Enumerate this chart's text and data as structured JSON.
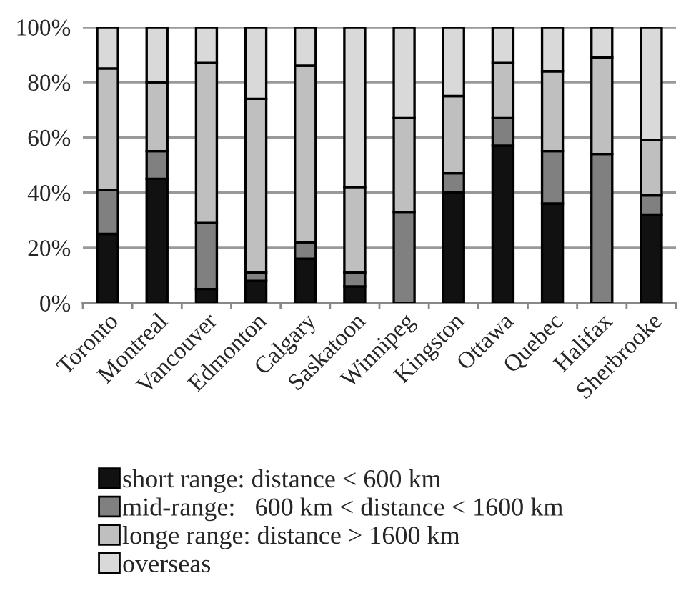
{
  "chart_data": {
    "type": "bar",
    "stacked": true,
    "categories": [
      "Toronto",
      "Montreal",
      "Vancouver",
      "Edmonton",
      "Calgary",
      "Saskatoon",
      "Winnipeg",
      "Kingston",
      "Ottawa",
      "Quebec",
      "Halifax",
      "Sherbrooke"
    ],
    "series": [
      {
        "name": "short range: distance < 600 km",
        "color": "#111111",
        "values": [
          25,
          45,
          5,
          8,
          16,
          6,
          0,
          40,
          57,
          36,
          0,
          32
        ]
      },
      {
        "name": "mid-range:   600 km < distance < 1600 km",
        "color": "#808080",
        "values": [
          16,
          10,
          24,
          3,
          6,
          5,
          33,
          7,
          10,
          19,
          54,
          7
        ]
      },
      {
        "name": "longe range: distance > 1600 km",
        "color": "#bfbfbf",
        "values": [
          44,
          25,
          58,
          63,
          64,
          31,
          34,
          28,
          20,
          29,
          35,
          20
        ]
      },
      {
        "name": "overseas",
        "color": "#d9d9d9",
        "values": [
          15,
          20,
          13,
          26,
          14,
          58,
          33,
          25,
          13,
          16,
          11,
          41
        ]
      }
    ],
    "ylim": [
      0,
      100
    ],
    "yticks": [
      {
        "value": 0,
        "label": "0%"
      },
      {
        "value": 20,
        "label": "20%"
      },
      {
        "value": 40,
        "label": "40%"
      },
      {
        "value": 60,
        "label": "60%"
      },
      {
        "value": 80,
        "label": "80%"
      },
      {
        "value": 100,
        "label": "100%"
      }
    ],
    "grid": "y",
    "legend": "bottom"
  }
}
